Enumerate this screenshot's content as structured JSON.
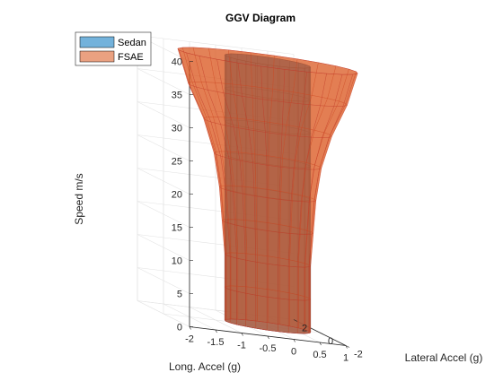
{
  "chart_data": {
    "type": "surface3d",
    "title": "GGV Diagram",
    "xlabel": "Long. Accel (g)",
    "ylabel": "Lateral Accel (g)",
    "zlabel": "Speed m/s",
    "xlim": [
      -2,
      1
    ],
    "ylim": [
      -2,
      2
    ],
    "zlim": [
      0,
      40
    ],
    "x_ticks": [
      "-2",
      "-1.5",
      "-1",
      "-0.5",
      "0",
      "0.5",
      "1"
    ],
    "y_ticks": [
      "-2",
      "0",
      "2"
    ],
    "z_ticks": [
      "0",
      "5",
      "10",
      "15",
      "20",
      "25",
      "30",
      "35",
      "40"
    ],
    "grid": true,
    "legend": {
      "position": "top-left"
    },
    "series": [
      {
        "name": "Sedan",
        "color": "#0072BD",
        "shape": "cylinder",
        "speed": [
          0,
          5,
          10,
          15,
          20,
          25,
          30,
          35,
          40
        ],
        "max_long_accel": [
          0.8,
          0.8,
          0.8,
          0.8,
          0.8,
          0.8,
          0.8,
          0.8,
          0.8
        ],
        "max_lateral_accel": [
          0.8,
          0.8,
          0.8,
          0.8,
          0.8,
          0.8,
          0.8,
          0.8,
          0.8
        ]
      },
      {
        "name": "FSAE",
        "color": "#D95319",
        "shape": "flared-cylinder",
        "speed": [
          0,
          5,
          10,
          15,
          20,
          25,
          30,
          35,
          40
        ],
        "max_long_accel": [
          0.8,
          0.8,
          0.8,
          0.85,
          0.9,
          1.0,
          1.2,
          1.5,
          1.7
        ],
        "max_lateral_accel": [
          0.8,
          0.8,
          0.8,
          0.85,
          0.9,
          1.0,
          1.1,
          1.2,
          1.3
        ]
      }
    ]
  }
}
